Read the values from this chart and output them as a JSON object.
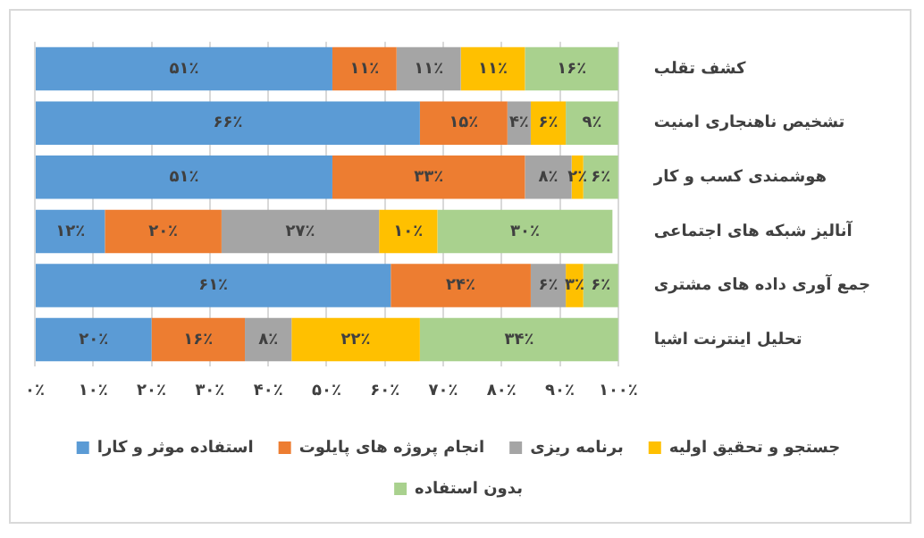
{
  "chart_data": {
    "type": "bar",
    "orientation": "horizontal",
    "stacked": true,
    "categories": [
      "کشف تقلب",
      "تشخیص ناهنجاری امنیت",
      "هوشمندی کسب و کار",
      "آنالیز شبکه های اجتماعی",
      "جمع آوری داده های مشتری",
      "تحلیل اینترنت اشیا"
    ],
    "series": [
      {
        "name": "استفاده موثر و کارا",
        "color": "#5b9bd5",
        "values": [
          51,
          66,
          51,
          12,
          61,
          20
        ],
        "value_labels": [
          "۵۱٪",
          "۶۶٪",
          "۵۱٪",
          "۱۲٪",
          "۶۱٪",
          "۲۰٪"
        ]
      },
      {
        "name": "انجام پروژه های پایلوت",
        "color": "#ed7d31",
        "values": [
          11,
          15,
          33,
          20,
          24,
          16
        ],
        "value_labels": [
          "۱۱٪",
          "۱۵٪",
          "۳۳٪",
          "۲۰٪",
          "۲۴٪",
          "۱۶٪"
        ]
      },
      {
        "name": "برنامه ریزی",
        "color": "#a5a5a5",
        "values": [
          11,
          4,
          8,
          27,
          6,
          8
        ],
        "value_labels": [
          "۱۱٪",
          "۴٪",
          "۸٪",
          "۲۷٪",
          "۶٪",
          "۸٪"
        ]
      },
      {
        "name": "جستجو و تحقیق اولیه",
        "color": "#ffc000",
        "values": [
          11,
          6,
          2,
          10,
          3,
          22
        ],
        "value_labels": [
          "۱۱٪",
          "۶٪",
          "۲٪",
          "۱۰٪",
          "۳٪",
          "۲۲٪"
        ]
      },
      {
        "name": "بدون استفاده",
        "color": "#a9d18e",
        "values": [
          16,
          9,
          6,
          30,
          6,
          34
        ],
        "value_labels": [
          "۱۶٪",
          "۹٪",
          "۶٪",
          "۳۰٪",
          "۶٪",
          "۳۴٪"
        ]
      }
    ],
    "xlim": [
      0,
      100
    ],
    "xticks": [
      {
        "value": 0,
        "label": "۰٪"
      },
      {
        "value": 10,
        "label": "۱۰٪"
      },
      {
        "value": 20,
        "label": "۲۰٪"
      },
      {
        "value": 30,
        "label": "۳۰٪"
      },
      {
        "value": 40,
        "label": "۴۰٪"
      },
      {
        "value": 50,
        "label": "۵۰٪"
      },
      {
        "value": 60,
        "label": "۶۰٪"
      },
      {
        "value": 70,
        "label": "۷۰٪"
      },
      {
        "value": 80,
        "label": "۸۰٪"
      },
      {
        "value": 90,
        "label": "۹۰٪"
      },
      {
        "value": 100,
        "label": "۱۰۰٪"
      }
    ],
    "grid": "x",
    "legend": "bottom"
  }
}
